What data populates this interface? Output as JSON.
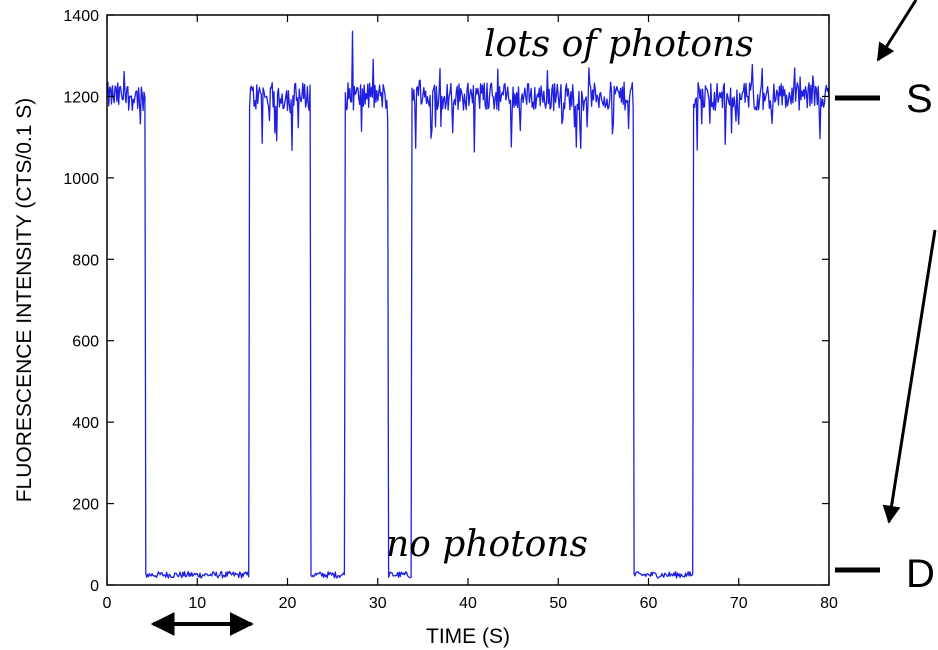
{
  "chart_data": {
    "type": "line",
    "xlabel": "TIME (S)",
    "ylabel": "FLUORESCENCE INTENSITY (CTS/0.1 S)",
    "xlim": [
      0,
      80
    ],
    "ylim": [
      0,
      1400
    ],
    "xticks": [
      0,
      10,
      20,
      30,
      40,
      50,
      60,
      70,
      80
    ],
    "yticks": [
      0,
      200,
      400,
      600,
      800,
      1000,
      1200,
      1400
    ],
    "grid": false,
    "series_color": "#1f1fe0",
    "levels": {
      "high": 1200,
      "low": 25
    },
    "segments": [
      {
        "start": 0.0,
        "end": 4.3,
        "state": "high"
      },
      {
        "start": 4.3,
        "end": 15.8,
        "state": "low"
      },
      {
        "start": 15.8,
        "end": 22.6,
        "state": "high"
      },
      {
        "start": 22.6,
        "end": 26.4,
        "state": "low"
      },
      {
        "start": 26.4,
        "end": 31.2,
        "state": "high"
      },
      {
        "start": 31.2,
        "end": 33.8,
        "state": "low"
      },
      {
        "start": 33.8,
        "end": 58.4,
        "state": "high"
      },
      {
        "start": 58.4,
        "end": 65.0,
        "state": "low"
      },
      {
        "start": 65.0,
        "end": 80.0,
        "state": "high"
      }
    ],
    "spikes": [
      {
        "x": 27.2,
        "y": 1360
      }
    ],
    "annotations": {
      "high": "lots of photons",
      "low": "no photons",
      "state_high": "S",
      "state_low": "D"
    },
    "duration_arrow": {
      "from": 5.1,
      "to": 16.0
    }
  }
}
